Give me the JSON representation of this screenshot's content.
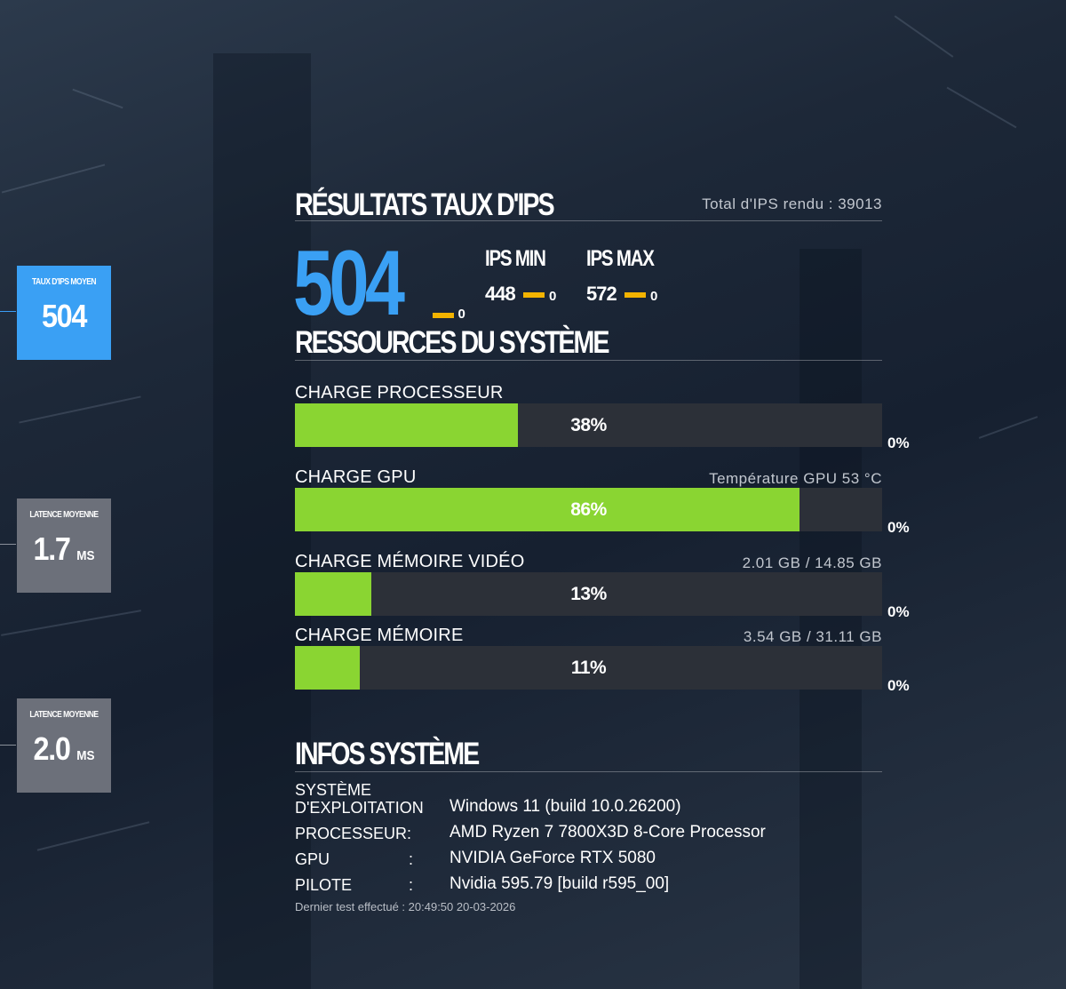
{
  "sidebar": {
    "tiles": [
      {
        "label": "TAUX D'IPS MOYEN",
        "value": "504",
        "unit": ""
      },
      {
        "label": "LATENCE MOYENNE",
        "value": "1.7",
        "unit": "MS"
      },
      {
        "label": "LATENCE MOYENNE",
        "value": "2.0",
        "unit": "MS"
      }
    ]
  },
  "fps_results": {
    "title": "RÉSULTATS TAUX D'IPS",
    "total_rendered": "Total d'IPS rendu : 39013",
    "average": "504",
    "average_delta": "0",
    "min_label": "IPS MIN",
    "min_value": "448",
    "min_delta": "0",
    "max_label": "IPS MAX",
    "max_value": "572",
    "max_delta": "0"
  },
  "resources": {
    "title": "RESSOURCES DU SYSTÈME",
    "rows": [
      {
        "name": "CHARGE PROCESSEUR",
        "detail": "",
        "percent": 38,
        "percent_text": "38%",
        "delta": "0%"
      },
      {
        "name": "CHARGE GPU",
        "detail": "Température GPU 53 °C",
        "percent": 86,
        "percent_text": "86%",
        "delta": "0%"
      },
      {
        "name": "CHARGE MÉMOIRE VIDÉO",
        "detail": "2.01 GB / 14.85 GB",
        "percent": 13,
        "percent_text": "13%",
        "delta": "0%"
      },
      {
        "name": "CHARGE MÉMOIRE",
        "detail": "3.54 GB / 31.11 GB",
        "percent": 11,
        "percent_text": "11%",
        "delta": "0%"
      }
    ]
  },
  "system_info": {
    "title": "INFOS SYSTÈME",
    "rows": [
      {
        "key_line1": "SYSTÈME",
        "key_line2": "D'EXPLOITATION",
        "value": "Windows 11 (build 10.0.26200)"
      },
      {
        "key_line1": "",
        "key_line2": "PROCESSEUR:",
        "value": "AMD Ryzen 7 7800X3D 8-Core Processor"
      },
      {
        "key_line1": "",
        "key_line2": "GPU",
        "sep": ":",
        "value": "NVIDIA GeForce RTX 5080"
      },
      {
        "key_line1": "",
        "key_line2": "PILOTE",
        "sep": ":",
        "value": "Nvidia 595.79 [build r595_00]"
      }
    ],
    "last_test": "Dernier test effectué : 20:49:50 20-03-2026"
  },
  "colors": {
    "accent": "#3aa0f4",
    "bar_fill": "#8ad532",
    "bar_track": "#2c3038",
    "delta": "#f3b300",
    "tile_inactive": "#6c707a"
  }
}
